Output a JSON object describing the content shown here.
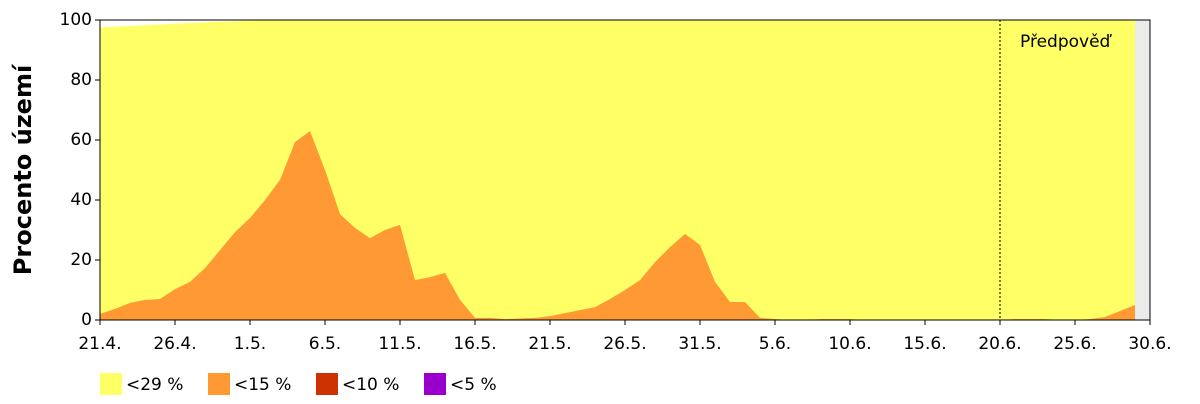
{
  "chart_data": {
    "type": "area",
    "y_label": "Procento území",
    "categories": [
      "21.4.",
      null,
      null,
      null,
      null,
      "26.4.",
      null,
      null,
      null,
      null,
      "1.5.",
      null,
      null,
      null,
      null,
      "6.5.",
      null,
      null,
      null,
      null,
      "11.5.",
      null,
      null,
      null,
      null,
      "16.5.",
      null,
      null,
      null,
      null,
      "21.5.",
      null,
      null,
      null,
      null,
      "26.5.",
      null,
      null,
      null,
      null,
      "31.5.",
      null,
      null,
      null,
      null,
      "5.6.",
      null,
      null,
      null,
      null,
      "10.6.",
      null,
      null,
      null,
      null,
      "15.6.",
      null,
      null,
      null,
      null,
      "20.6.",
      null,
      null,
      null,
      null,
      "25.6.",
      null,
      null,
      null,
      null,
      "30.6."
    ],
    "series": [
      {
        "name": "<29 %",
        "color": "#ffff66",
        "values": [
          97.5,
          97.8,
          98,
          98.3,
          98.5,
          98.8,
          99,
          99.2,
          99.4,
          99.6,
          99.8,
          100,
          100,
          100,
          100,
          100,
          100,
          100,
          100,
          100,
          100,
          100,
          100,
          100,
          100,
          100,
          100,
          100,
          100,
          100,
          100,
          100,
          100,
          100,
          100,
          100,
          100,
          100,
          100,
          100,
          100,
          100,
          100,
          100,
          100,
          100,
          100,
          100,
          100,
          100,
          100,
          100,
          100,
          100,
          100,
          100,
          100,
          100,
          100,
          100,
          100,
          100,
          100,
          100,
          100,
          100,
          100,
          100,
          100,
          100,
          null
        ]
      },
      {
        "name": "<15 %",
        "color": "#ff9933",
        "values": [
          2,
          3.7,
          5.7,
          6.7,
          7,
          10.3,
          12.7,
          17.3,
          23.3,
          29.3,
          34,
          40,
          46.7,
          59.3,
          63,
          50,
          35.3,
          30.7,
          27.3,
          30,
          31.7,
          13.3,
          14.3,
          15.7,
          6.7,
          0.7,
          0.7,
          0.3,
          0.5,
          0.7,
          1.3,
          2.3,
          3.3,
          4.3,
          7,
          10,
          13.3,
          19.3,
          24.3,
          28.7,
          25,
          12.7,
          6,
          6,
          0.7,
          0.3,
          0,
          0,
          0.3,
          0.3,
          0.3,
          0,
          0,
          0,
          0,
          0,
          0,
          0,
          0,
          0,
          0,
          0.3,
          0.3,
          0.3,
          0,
          0,
          0.3,
          1,
          3,
          5,
          null
        ]
      },
      {
        "name": "<10 %",
        "color": "#cc3300",
        "values": [
          0,
          0,
          0,
          0,
          0,
          0,
          0,
          0,
          0,
          0,
          0,
          0,
          0,
          0,
          0,
          0,
          0,
          0,
          0,
          0,
          0,
          0,
          0,
          0,
          0,
          0,
          0,
          0,
          0,
          0,
          0,
          0,
          0,
          0,
          0,
          0,
          0,
          0,
          0,
          0,
          0,
          0,
          0,
          0,
          0,
          0,
          0,
          0,
          0,
          0,
          0,
          0,
          0,
          0,
          0,
          0,
          0,
          0,
          0,
          0,
          0,
          0,
          0,
          0,
          0,
          0,
          0,
          0,
          0,
          0,
          null
        ]
      },
      {
        "name": "<5 %",
        "color": "#9900cc",
        "values": [
          0,
          0,
          0,
          0,
          0,
          0,
          0,
          0,
          0,
          0,
          0,
          0,
          0,
          0,
          0,
          0,
          0,
          0,
          0,
          0,
          0,
          0,
          0,
          0,
          0,
          0,
          0,
          0,
          0,
          0,
          0,
          0,
          0,
          0,
          0,
          0,
          0,
          0,
          0,
          0,
          0,
          0,
          0,
          0,
          0,
          0,
          0,
          0,
          0,
          0,
          0,
          0,
          0,
          0,
          0,
          0,
          0,
          0,
          0,
          0,
          0,
          0,
          0,
          0,
          0,
          0,
          0,
          0,
          0,
          0,
          null
        ]
      }
    ],
    "ylim": [
      0,
      100
    ],
    "yticks": [
      0,
      20,
      40,
      60,
      80,
      100
    ],
    "annotations": [
      {
        "text": "Předpověď",
        "x": "20.6."
      }
    ]
  }
}
